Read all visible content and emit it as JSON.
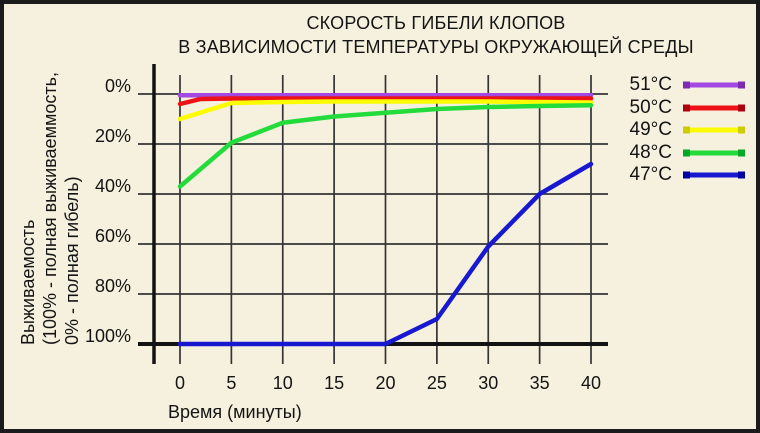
{
  "palette": {
    "background": "#F6F1DE",
    "frame_border": "#1B1B1B",
    "grid": "#343434",
    "axis": "#121212",
    "text": "#141414"
  },
  "title": {
    "line1": "СКОРОСТЬ ГИБЕЛИ КЛОПОВ",
    "line2": "В ЗАВИСИМОСТИ ТЕМПЕРАТУРЫ ОКРУЖАЮЩЕЙ СРЕДЫ"
  },
  "chart_data": {
    "type": "line",
    "title": "СКОРОСТЬ ГИБЕЛИ КЛОПОВ В ЗАВИСИМОСТИ ТЕМПЕРАТУРЫ ОКРУЖАЮЩЕЙ СРЕДЫ",
    "xlabel": "Время (минуты)",
    "ylabel_lines": [
      "Выживаемость",
      "(100% - полная выживаеммость,",
      "0% - полная гибель)"
    ],
    "x_ticks": [
      0,
      5,
      10,
      15,
      20,
      25,
      30,
      35,
      40
    ],
    "y_tick_values": [
      0,
      20,
      40,
      60,
      80,
      100
    ],
    "y_tick_labels": [
      "0%",
      "20%",
      "40%",
      "60%",
      "80%",
      "100%"
    ],
    "xlim": [
      0,
      40
    ],
    "ylim": [
      0,
      100
    ],
    "y_axis_inverted": true,
    "grid": true,
    "legend_position": "right",
    "series": [
      {
        "name": "51°C",
        "color": "#A348E2",
        "marker_color": "#7D2BB0",
        "points": [
          [
            0,
            0.5
          ],
          [
            5,
            0.5
          ],
          [
            10,
            0.5
          ],
          [
            15,
            0.5
          ],
          [
            20,
            0.5
          ],
          [
            25,
            0.5
          ],
          [
            30,
            0.5
          ],
          [
            35,
            0.5
          ],
          [
            40,
            0.5
          ]
        ]
      },
      {
        "name": "50°C",
        "color": "#ED1118",
        "marker_color": "#AF0010",
        "points": [
          [
            0,
            4
          ],
          [
            2,
            2
          ],
          [
            5,
            1.8
          ],
          [
            10,
            1.8
          ],
          [
            15,
            1.8
          ],
          [
            20,
            1.8
          ],
          [
            25,
            1.8
          ],
          [
            30,
            1.8
          ],
          [
            35,
            1.8
          ],
          [
            40,
            1.8
          ]
        ]
      },
      {
        "name": "49°C",
        "color": "#FCFC00",
        "marker_color": "#CCCC00",
        "points": [
          [
            0,
            10
          ],
          [
            5,
            3.6
          ],
          [
            10,
            3.2
          ],
          [
            15,
            3
          ],
          [
            20,
            3
          ],
          [
            25,
            3
          ],
          [
            30,
            3
          ],
          [
            35,
            3.2
          ],
          [
            40,
            3.4
          ]
        ]
      },
      {
        "name": "48°C",
        "color": "#24DB3C",
        "marker_color": "#00A826",
        "points": [
          [
            0,
            37
          ],
          [
            5,
            19.5
          ],
          [
            10,
            11.5
          ],
          [
            15,
            9
          ],
          [
            20,
            7.5
          ],
          [
            25,
            6
          ],
          [
            30,
            5.2
          ],
          [
            35,
            4.8
          ],
          [
            40,
            4.5
          ]
        ]
      },
      {
        "name": "47°C",
        "color": "#1818D0",
        "marker_color": "#0000A0",
        "points": [
          [
            0,
            100
          ],
          [
            5,
            100
          ],
          [
            10,
            100
          ],
          [
            15,
            100
          ],
          [
            20,
            100
          ],
          [
            25,
            90
          ],
          [
            30,
            61
          ],
          [
            35,
            40
          ],
          [
            40,
            28
          ]
        ]
      }
    ]
  }
}
